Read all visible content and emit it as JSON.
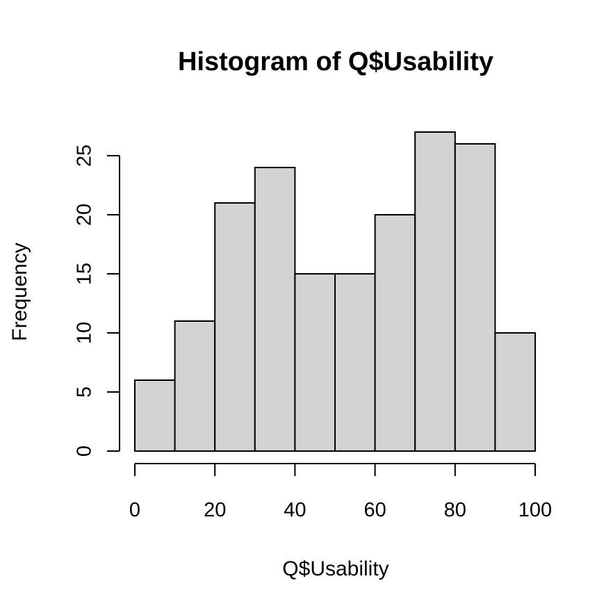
{
  "chart_data": {
    "type": "bar",
    "title": "Histogram of Q$Usability",
    "xlabel": "Q$Usability",
    "ylabel": "Frequency",
    "bins": [
      {
        "start": 0,
        "end": 10,
        "count": 6
      },
      {
        "start": 10,
        "end": 20,
        "count": 11
      },
      {
        "start": 20,
        "end": 30,
        "count": 21
      },
      {
        "start": 30,
        "end": 40,
        "count": 24
      },
      {
        "start": 40,
        "end": 50,
        "count": 15
      },
      {
        "start": 50,
        "end": 60,
        "count": 15
      },
      {
        "start": 60,
        "end": 70,
        "count": 20
      },
      {
        "start": 70,
        "end": 80,
        "count": 27
      },
      {
        "start": 80,
        "end": 90,
        "count": 26
      },
      {
        "start": 90,
        "end": 100,
        "count": 10
      }
    ],
    "xlim": [
      0,
      100
    ],
    "ylim": [
      0,
      27
    ],
    "xticks": [
      0,
      20,
      40,
      60,
      80,
      100
    ],
    "yticks": [
      0,
      5,
      10,
      15,
      20,
      25
    ],
    "grid": false,
    "bar_color": "#d3d3d3",
    "edge_color": "#000000"
  }
}
